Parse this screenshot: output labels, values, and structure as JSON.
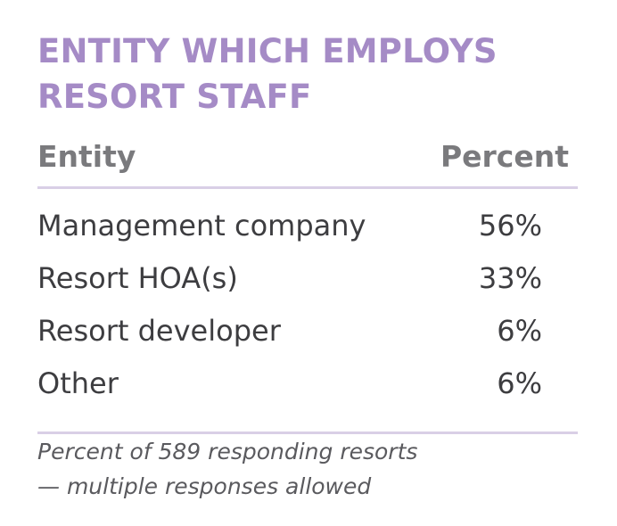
{
  "title": {
    "line1": "ENTITY WHICH EMPLOYS",
    "line2": "RESORT STAFF"
  },
  "table": {
    "headers": {
      "entity": "Entity",
      "percent": "Percent"
    },
    "rows": [
      {
        "entity": "Management company",
        "percent": "56%"
      },
      {
        "entity": "Resort HOA(s)",
        "percent": "33%"
      },
      {
        "entity": "Resort developer",
        "percent": "6%"
      },
      {
        "entity": "Other",
        "percent": "6%"
      }
    ]
  },
  "note": {
    "line1": "Percent of 589 responding resorts",
    "line2": "— multiple responses allowed"
  },
  "colors": {
    "title": "#a58bc6",
    "rule": "#d9cfe6",
    "header_text": "#7a7a7d",
    "body_text": "#3d3d40"
  }
}
